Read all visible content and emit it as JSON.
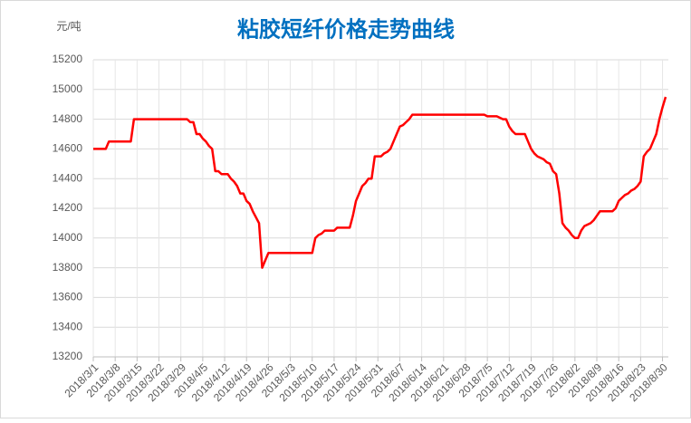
{
  "chart_data": {
    "type": "line",
    "title": "粘胶短纤价格走势曲线",
    "y_label": "元/吨",
    "categories": [
      "2018/3/1",
      null,
      null,
      null,
      null,
      null,
      null,
      "2018/3/8",
      null,
      null,
      null,
      null,
      null,
      null,
      "2018/3/15",
      null,
      null,
      null,
      null,
      null,
      null,
      "2018/3/22",
      null,
      null,
      null,
      null,
      null,
      null,
      "2018/3/29",
      null,
      null,
      null,
      null,
      null,
      null,
      "2018/4/5",
      null,
      null,
      null,
      null,
      null,
      null,
      "2018/4/12",
      null,
      null,
      null,
      null,
      null,
      null,
      "2018/4/19",
      null,
      null,
      null,
      null,
      null,
      null,
      "2018/4/26",
      null,
      null,
      null,
      null,
      null,
      null,
      "2018/5/3",
      null,
      null,
      null,
      null,
      null,
      null,
      "2018/5/10",
      null,
      null,
      null,
      null,
      null,
      null,
      "2018/5/17",
      null,
      null,
      null,
      null,
      null,
      null,
      "2018/5/24",
      null,
      null,
      null,
      null,
      null,
      null,
      "2018/5/31",
      null,
      null,
      null,
      null,
      null,
      null,
      "2018/6/7",
      null,
      null,
      null,
      null,
      null,
      null,
      "2018/6/14",
      null,
      null,
      null,
      null,
      null,
      null,
      "2018/6/21",
      null,
      null,
      null,
      null,
      null,
      null,
      "2018/6/28",
      null,
      null,
      null,
      null,
      null,
      null,
      "2018/7/5",
      null,
      null,
      null,
      null,
      null,
      null,
      "2018/7/12",
      null,
      null,
      null,
      null,
      null,
      null,
      "2018/7/19",
      null,
      null,
      null,
      null,
      null,
      null,
      "2018/7/26",
      null,
      null,
      null,
      null,
      null,
      null,
      "2018/8/2",
      null,
      null,
      null,
      null,
      null,
      null,
      "2018/8/9",
      null,
      null,
      null,
      null,
      null,
      null,
      "2018/8/16",
      null,
      null,
      null,
      null,
      null,
      null,
      "2018/8/23",
      null,
      null,
      null,
      null,
      null,
      null,
      "2018/8/30",
      null
    ],
    "series": [
      {
        "color": "#ff0000",
        "values": [
          14600,
          14600,
          14600,
          14600,
          14600,
          14650,
          14650,
          14650,
          14650,
          14650,
          14650,
          14650,
          14650,
          14800,
          14800,
          14800,
          14800,
          14800,
          14800,
          14800,
          14800,
          14800,
          14800,
          14800,
          14800,
          14800,
          14800,
          14800,
          14800,
          14800,
          14800,
          14780,
          14780,
          14700,
          14700,
          14670,
          14650,
          14620,
          14600,
          14450,
          14450,
          14430,
          14430,
          14430,
          14400,
          14380,
          14350,
          14300,
          14300,
          14250,
          14230,
          14180,
          14140,
          14100,
          13800,
          13850,
          13900,
          13900,
          13900,
          13900,
          13900,
          13900,
          13900,
          13900,
          13900,
          13900,
          13900,
          13900,
          13900,
          13900,
          13900,
          14000,
          14020,
          14030,
          14050,
          14050,
          14050,
          14050,
          14070,
          14070,
          14070,
          14070,
          14070,
          14150,
          14250,
          14300,
          14350,
          14370,
          14400,
          14400,
          14550,
          14550,
          14550,
          14570,
          14580,
          14600,
          14650,
          14700,
          14750,
          14760,
          14780,
          14800,
          14830,
          14830,
          14830,
          14830,
          14830,
          14830,
          14830,
          14830,
          14830,
          14830,
          14830,
          14830,
          14830,
          14830,
          14830,
          14830,
          14830,
          14830,
          14830,
          14830,
          14830,
          14830,
          14830,
          14830,
          14820,
          14820,
          14820,
          14820,
          14810,
          14800,
          14800,
          14750,
          14720,
          14700,
          14700,
          14700,
          14700,
          14650,
          14600,
          14570,
          14550,
          14540,
          14530,
          14510,
          14500,
          14450,
          14430,
          14300,
          14100,
          14070,
          14050,
          14020,
          14000,
          14000,
          14050,
          14080,
          14090,
          14100,
          14120,
          14150,
          14180,
          14180,
          14180,
          14180,
          14180,
          14200,
          14250,
          14270,
          14290,
          14300,
          14320,
          14330,
          14350,
          14380,
          14550,
          14580,
          14600,
          14650,
          14700,
          14800,
          14880,
          14950
        ]
      }
    ],
    "ylim": [
      13200,
      15200
    ],
    "yticks": [
      13200,
      13400,
      13600,
      13800,
      14000,
      14200,
      14400,
      14600,
      14800,
      15000,
      15200
    ],
    "grid": true
  }
}
